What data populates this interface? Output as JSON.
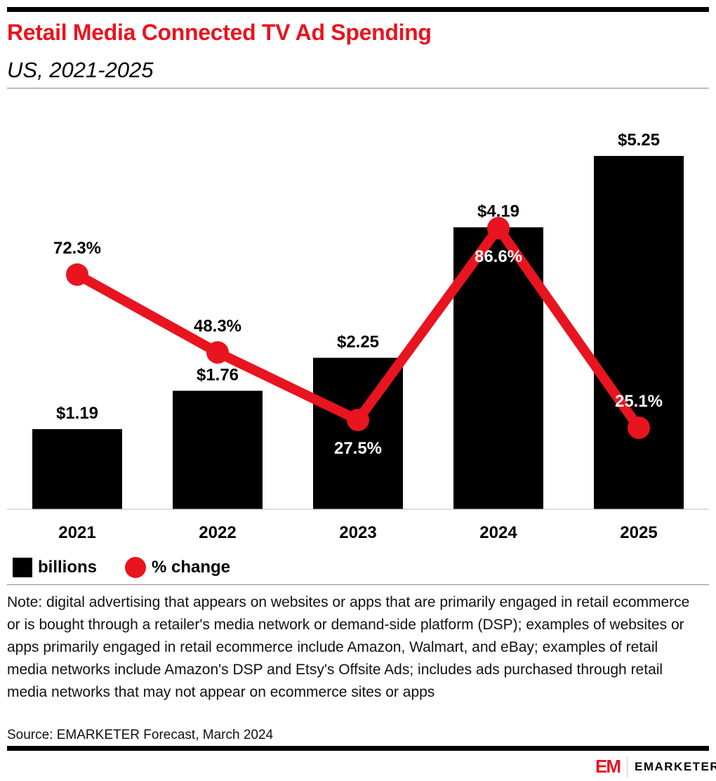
{
  "title": "Retail Media Connected TV Ad Spending",
  "subtitle": "US, 2021-2025",
  "chart_data": {
    "type": "bar+line",
    "categories": [
      "2021",
      "2022",
      "2023",
      "2024",
      "2025"
    ],
    "series": [
      {
        "name": "billions",
        "type": "bar",
        "values": [
          1.19,
          1.76,
          2.25,
          4.19,
          5.25
        ],
        "labels": [
          "$1.19",
          "$1.76",
          "$2.25",
          "$4.19",
          "$5.25"
        ],
        "color": "#000000"
      },
      {
        "name": "% change",
        "type": "line",
        "values": [
          72.3,
          48.3,
          27.5,
          86.6,
          25.1
        ],
        "labels": [
          "72.3%",
          "48.3%",
          "27.5%",
          "86.6%",
          "25.1%"
        ],
        "color": "#e8141f"
      }
    ],
    "grid": false,
    "legend": "bottom-left"
  },
  "note": "Note: digital advertising that appears on websites or apps that are primarily engaged in retail ecommerce or is bought through a retailer's media network or demand-side platform (DSP); examples of websites or apps primarily engaged in retail ecommerce include Amazon, Walmart, and eBay; examples of retail media networks include Amazon's DSP and Etsy's Offsite Ads; includes ads purchased through retail media networks that may not appear on ecommerce sites or apps",
  "source": "Source: EMARKETER Forecast, March 2024",
  "logo": {
    "mark": "EM",
    "brand": "EMARKETER"
  }
}
